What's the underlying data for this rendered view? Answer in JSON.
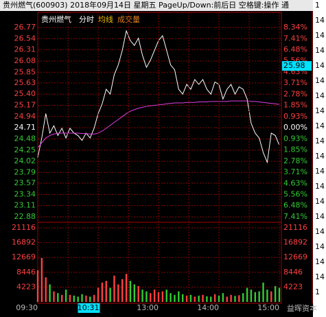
{
  "title": "贵州燃气(600903) 2018年09月14日 星期五 PageUp/Down:前后日 空格键:操作 通",
  "watermark": "益晖资本",
  "side_column": [
    "1",
    "14",
    "14",
    "14",
    "14",
    "14",
    "14",
    "14",
    "14",
    "14",
    "14",
    "14",
    "14",
    "14",
    "14",
    "14",
    "14",
    "14",
    "14",
    "1"
  ],
  "chart_data": [
    {
      "type": "line",
      "title": "贵州燃气",
      "x": [
        0,
        4,
        8,
        12,
        16,
        20,
        24,
        28,
        32,
        36,
        40,
        44,
        48,
        52,
        56,
        60,
        64,
        68,
        72,
        76,
        80,
        84,
        88,
        92,
        96,
        100,
        104,
        108,
        112,
        116,
        120,
        124,
        128,
        132,
        136,
        140,
        144,
        148,
        152,
        156,
        160,
        164,
        168,
        172,
        176,
        180,
        184,
        188,
        192,
        196,
        200,
        204,
        208,
        212,
        216,
        220,
        224,
        228,
        232,
        236,
        240
      ],
      "xlim": [
        0,
        240
      ],
      "series": [
        {
          "name": "分时",
          "color": "#ffffff",
          "values": [
            24.1,
            24.5,
            25.0,
            24.6,
            24.75,
            24.55,
            24.7,
            24.5,
            24.7,
            24.6,
            24.55,
            24.45,
            24.6,
            24.5,
            24.7,
            25.0,
            25.2,
            25.5,
            25.4,
            25.8,
            26.0,
            26.3,
            26.7,
            26.5,
            26.4,
            26.55,
            26.2,
            25.95,
            26.1,
            26.3,
            26.5,
            26.6,
            26.3,
            26.0,
            25.9,
            25.5,
            25.4,
            25.6,
            25.5,
            25.7,
            25.6,
            25.7,
            25.5,
            25.4,
            25.65,
            25.6,
            25.3,
            25.5,
            25.6,
            25.4,
            25.55,
            25.5,
            25.3,
            24.8,
            24.6,
            24.5,
            24.2,
            24.0,
            24.6,
            24.55,
            24.35
          ]
        },
        {
          "name": "均线",
          "color": "#e040e0",
          "values": [
            24.3,
            24.4,
            24.5,
            24.55,
            24.58,
            24.6,
            24.6,
            24.6,
            24.6,
            24.6,
            24.6,
            24.59,
            24.59,
            24.58,
            24.58,
            24.6,
            24.64,
            24.7,
            24.76,
            24.82,
            24.88,
            24.94,
            25.0,
            25.05,
            25.08,
            25.11,
            25.13,
            25.15,
            25.16,
            25.17,
            25.18,
            25.19,
            25.2,
            25.21,
            25.22,
            25.22,
            25.22,
            25.23,
            25.23,
            25.23,
            25.24,
            25.24,
            25.24,
            25.25,
            25.25,
            25.25,
            25.25,
            25.25,
            25.26,
            25.26,
            25.26,
            25.26,
            25.26,
            25.25,
            25.25,
            25.24,
            25.23,
            25.22,
            25.21,
            25.2,
            25.19
          ]
        }
      ],
      "ylim": [
        22.88,
        26.77
      ],
      "yticks": [
        26.77,
        26.54,
        26.31,
        26.08,
        25.85,
        25.63,
        {
          "value": 25.4,
          "label": "25.40"
        },
        25.17,
        24.94,
        24.71,
        24.48,
        24.25,
        24.02,
        23.79,
        23.57,
        23.34,
        23.11,
        22.88
      ],
      "y2lim": [
        -7.41,
        8.34
      ],
      "y2ticks": [
        {
          "value": 8.34,
          "label": "8.34%"
        },
        {
          "value": 7.41,
          "label": "7.41%"
        },
        {
          "value": 6.48,
          "label": "6.48%"
        },
        {
          "value": 5.56,
          "label": "5.56%"
        },
        {
          "value": 4.63,
          "label": "4.63%"
        },
        {
          "value": 3.71,
          "label": "3.71%"
        },
        {
          "value": 2.78,
          "label": "2.78%"
        },
        {
          "value": 1.85,
          "label": "1.85%"
        },
        {
          "value": 0.93,
          "label": "0.93%"
        },
        {
          "value": 0,
          "label": "0.00%"
        },
        {
          "value": -0.93,
          "label": "0.93%"
        },
        {
          "value": -1.85,
          "label": "1.85%"
        },
        {
          "value": -2.78,
          "label": "2.78%"
        },
        {
          "value": -3.71,
          "label": "3.71%"
        },
        {
          "value": -4.63,
          "label": "4.63%"
        },
        {
          "value": -5.56,
          "label": "5.56%"
        },
        {
          "value": -6.48,
          "label": "6.48%"
        },
        {
          "value": -7.41,
          "label": "7.41%"
        }
      ],
      "cursor_price": 25.98,
      "up_color": "#ff4040",
      "flat_color": "#ffffff",
      "down_color": "#33cc33",
      "grid": true
    },
    {
      "type": "bar",
      "title": "成交量",
      "x": [
        0,
        4,
        8,
        12,
        16,
        20,
        24,
        28,
        32,
        36,
        40,
        44,
        48,
        52,
        56,
        60,
        64,
        68,
        72,
        76,
        80,
        84,
        88,
        92,
        96,
        100,
        104,
        108,
        112,
        116,
        120,
        124,
        128,
        132,
        136,
        140,
        144,
        148,
        152,
        156,
        160,
        164,
        168,
        172,
        176,
        180,
        184,
        188,
        192,
        196,
        200,
        204,
        208,
        212,
        216,
        220,
        224,
        228,
        232,
        236,
        240
      ],
      "xlim": [
        0,
        240
      ],
      "values": [
        9000,
        12500,
        7000,
        5000,
        3000,
        2500,
        2000,
        3500,
        2000,
        1800,
        1500,
        2200,
        1800,
        1500,
        2000,
        4000,
        5500,
        6000,
        4000,
        7500,
        5000,
        6500,
        8000,
        6000,
        5000,
        4500,
        3500,
        3000,
        2500,
        3500,
        2800,
        3000,
        3500,
        2500,
        2000,
        3000,
        2200,
        1800,
        2000,
        1500,
        1800,
        2000,
        1600,
        1500,
        2200,
        1800,
        2500,
        1500,
        2000,
        1700,
        1900,
        2500,
        4000,
        3500,
        2800,
        3000,
        5500,
        3500,
        3000,
        4500,
        4000
      ],
      "ylim": [
        0,
        21116
      ],
      "yticks": [
        21116,
        16892,
        12669,
        8446,
        4223
      ],
      "xticks": [
        {
          "value": 0,
          "label": "09:30"
        },
        {
          "value": 120,
          "label": "13:00"
        },
        {
          "value": 180,
          "label": "14:00"
        },
        {
          "value": 240,
          "label": "15:00"
        }
      ],
      "xminorticks": [
        30,
        60,
        90,
        150,
        210
      ],
      "cursor_time": {
        "value": 61,
        "label": "10:31"
      },
      "up_color": "#ff4040",
      "down_color": "#33cc33",
      "label_color": "#ff4040",
      "grid": true
    }
  ]
}
